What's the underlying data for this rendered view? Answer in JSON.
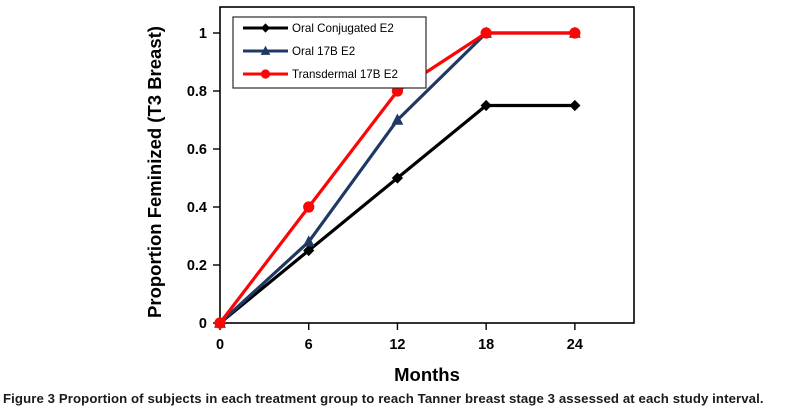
{
  "chart_data": {
    "type": "line",
    "x": [
      0,
      6,
      12,
      18,
      24
    ],
    "series": [
      {
        "name": "Oral Conjugated E2",
        "color": "#000000",
        "marker": "diamond",
        "values": [
          0,
          0.25,
          0.5,
          0.75,
          0.75
        ]
      },
      {
        "name": "Oral 17B E2",
        "color": "#1F3864",
        "marker": "triangle",
        "values": [
          0,
          0.28,
          0.7,
          1,
          1
        ]
      },
      {
        "name": "Transdermal 17B E2",
        "color": "#FB0505",
        "marker": "circle",
        "values": [
          0,
          0.4,
          0.8,
          1,
          1
        ]
      }
    ],
    "title": "",
    "xlabel": "Months",
    "ylabel": "Proportion Feminized (T3 Breast)",
    "x_ticks": [
      0,
      6,
      12,
      18,
      24
    ],
    "y_ticks": [
      0,
      0.2,
      0.4,
      0.6,
      0.8,
      1
    ],
    "xlim": [
      0,
      28
    ],
    "ylim": [
      0,
      1
    ],
    "grid": false,
    "legend_position": "top-left"
  },
  "caption": {
    "label": "Figure 3",
    "text": "Proportion of subjects in each treatment group to reach Tanner breast stage 3 assessed at each study interval."
  }
}
